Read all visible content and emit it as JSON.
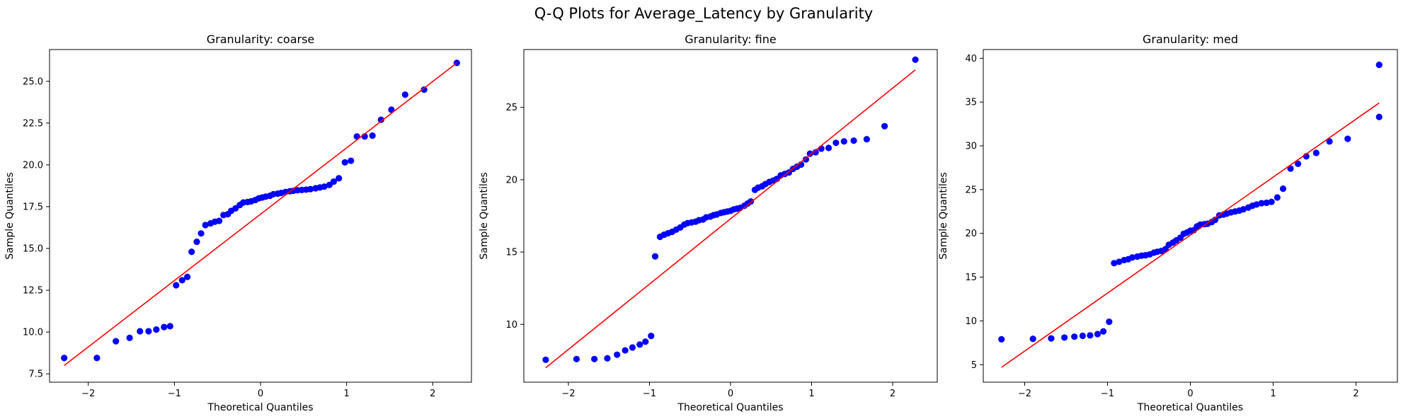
{
  "figure": {
    "title": "Q-Q Plots for Average_Latency by Granularity"
  },
  "chart_data": [
    {
      "type": "scatter",
      "title": "Granularity: coarse",
      "xlabel": "Theoretical Quantiles",
      "ylabel": "Sample Quantiles",
      "xlim": [
        -2.45,
        2.45
      ],
      "ylim": [
        7.0,
        26.9
      ],
      "xticks": [
        -2,
        -1,
        0,
        1,
        2
      ],
      "xtick_labels": [
        "−2",
        "−1",
        "0",
        "1",
        "2"
      ],
      "yticks": [
        7.5,
        10.0,
        12.5,
        15.0,
        17.5,
        20.0,
        22.5,
        25.0
      ],
      "ytick_labels": [
        "7.5",
        "10.0",
        "12.5",
        "15.0",
        "17.5",
        "20.0",
        "22.5",
        "25.0"
      ],
      "point_color": "#0000ff",
      "line_color": "#ff0000",
      "points": [
        [
          -2.28,
          8.45
        ],
        [
          -1.9,
          8.45
        ],
        [
          -1.68,
          9.45
        ],
        [
          -1.52,
          9.65
        ],
        [
          -1.4,
          10.05
        ],
        [
          -1.3,
          10.05
        ],
        [
          -1.21,
          10.15
        ],
        [
          -1.12,
          10.3
        ],
        [
          -1.05,
          10.35
        ],
        [
          -0.98,
          12.8
        ],
        [
          -0.91,
          13.1
        ],
        [
          -0.85,
          13.3
        ],
        [
          -0.8,
          14.8
        ],
        [
          -0.74,
          15.4
        ],
        [
          -0.69,
          15.9
        ],
        [
          -0.64,
          16.4
        ],
        [
          -0.58,
          16.5
        ],
        [
          -0.53,
          16.6
        ],
        [
          -0.48,
          16.65
        ],
        [
          -0.43,
          17.0
        ],
        [
          -0.38,
          17.05
        ],
        [
          -0.34,
          17.25
        ],
        [
          -0.29,
          17.4
        ],
        [
          -0.24,
          17.6
        ],
        [
          -0.2,
          17.75
        ],
        [
          -0.15,
          17.78
        ],
        [
          -0.11,
          17.82
        ],
        [
          -0.06,
          17.9
        ],
        [
          -0.02,
          18.0
        ],
        [
          0.02,
          18.05
        ],
        [
          0.06,
          18.1
        ],
        [
          0.11,
          18.15
        ],
        [
          0.15,
          18.25
        ],
        [
          0.2,
          18.28
        ],
        [
          0.24,
          18.32
        ],
        [
          0.29,
          18.38
        ],
        [
          0.34,
          18.42
        ],
        [
          0.38,
          18.45
        ],
        [
          0.43,
          18.48
        ],
        [
          0.48,
          18.5
        ],
        [
          0.53,
          18.52
        ],
        [
          0.58,
          18.55
        ],
        [
          0.64,
          18.6
        ],
        [
          0.69,
          18.65
        ],
        [
          0.74,
          18.7
        ],
        [
          0.8,
          18.8
        ],
        [
          0.85,
          19.0
        ],
        [
          0.91,
          19.2
        ],
        [
          0.98,
          20.15
        ],
        [
          1.05,
          20.25
        ],
        [
          1.12,
          21.7
        ],
        [
          1.21,
          21.7
        ],
        [
          1.3,
          21.75
        ],
        [
          1.4,
          22.7
        ],
        [
          1.52,
          23.3
        ],
        [
          1.68,
          24.2
        ],
        [
          1.9,
          24.5
        ],
        [
          2.28,
          26.1
        ]
      ],
      "reference_line": [
        [
          -2.28,
          8.0
        ],
        [
          2.28,
          26.1
        ]
      ]
    },
    {
      "type": "scatter",
      "title": "Granularity: fine",
      "xlabel": "Theoretical Quantiles",
      "ylabel": "Sample Quantiles",
      "xlim": [
        -2.55,
        2.55
      ],
      "ylim": [
        6.0,
        29.0
      ],
      "xticks": [
        -2,
        -1,
        0,
        1,
        2
      ],
      "xtick_labels": [
        "−2",
        "−1",
        "0",
        "1",
        "2"
      ],
      "yticks": [
        10,
        15,
        20,
        25
      ],
      "ytick_labels": [
        "10",
        "15",
        "20",
        "25"
      ],
      "point_color": "#0000ff",
      "line_color": "#ff0000",
      "points": [
        [
          -2.28,
          7.55
        ],
        [
          -1.9,
          7.6
        ],
        [
          -1.68,
          7.6
        ],
        [
          -1.52,
          7.65
        ],
        [
          -1.4,
          7.9
        ],
        [
          -1.3,
          8.2
        ],
        [
          -1.21,
          8.4
        ],
        [
          -1.12,
          8.6
        ],
        [
          -1.05,
          8.8
        ],
        [
          -0.98,
          9.2
        ],
        [
          -0.93,
          14.7
        ],
        [
          -0.87,
          16.05
        ],
        [
          -0.82,
          16.2
        ],
        [
          -0.77,
          16.3
        ],
        [
          -0.72,
          16.4
        ],
        [
          -0.67,
          16.55
        ],
        [
          -0.62,
          16.7
        ],
        [
          -0.57,
          16.9
        ],
        [
          -0.53,
          17.0
        ],
        [
          -0.48,
          17.05
        ],
        [
          -0.43,
          17.1
        ],
        [
          -0.39,
          17.2
        ],
        [
          -0.34,
          17.25
        ],
        [
          -0.3,
          17.4
        ],
        [
          -0.25,
          17.45
        ],
        [
          -0.21,
          17.55
        ],
        [
          -0.17,
          17.6
        ],
        [
          -0.12,
          17.7
        ],
        [
          -0.08,
          17.75
        ],
        [
          -0.04,
          17.8
        ],
        [
          0.0,
          17.85
        ],
        [
          0.04,
          17.95
        ],
        [
          0.08,
          18.0
        ],
        [
          0.12,
          18.05
        ],
        [
          0.17,
          18.2
        ],
        [
          0.21,
          18.35
        ],
        [
          0.25,
          18.5
        ],
        [
          0.3,
          19.3
        ],
        [
          0.34,
          19.45
        ],
        [
          0.39,
          19.55
        ],
        [
          0.43,
          19.7
        ],
        [
          0.48,
          19.85
        ],
        [
          0.53,
          19.95
        ],
        [
          0.57,
          20.05
        ],
        [
          0.62,
          20.3
        ],
        [
          0.67,
          20.4
        ],
        [
          0.72,
          20.5
        ],
        [
          0.77,
          20.75
        ],
        [
          0.82,
          20.9
        ],
        [
          0.87,
          21.05
        ],
        [
          0.93,
          21.4
        ],
        [
          0.98,
          21.8
        ],
        [
          1.05,
          21.9
        ],
        [
          1.12,
          22.15
        ],
        [
          1.21,
          22.2
        ],
        [
          1.3,
          22.55
        ],
        [
          1.4,
          22.65
        ],
        [
          1.52,
          22.7
        ],
        [
          1.68,
          22.8
        ],
        [
          1.9,
          23.7
        ],
        [
          2.28,
          28.3
        ]
      ],
      "reference_line": [
        [
          -2.28,
          7.0
        ],
        [
          2.28,
          27.6
        ]
      ]
    },
    {
      "type": "scatter",
      "title": "Granularity: med",
      "xlabel": "Theoretical Quantiles",
      "ylabel": "Sample Quantiles",
      "xlim": [
        -2.5,
        2.5
      ],
      "ylim": [
        3.0,
        41.0
      ],
      "xticks": [
        -2,
        -1,
        0,
        1,
        2
      ],
      "xtick_labels": [
        "−2",
        "−1",
        "0",
        "1",
        "2"
      ],
      "yticks": [
        5,
        10,
        15,
        20,
        25,
        30,
        35,
        40
      ],
      "ytick_labels": [
        "5",
        "10",
        "15",
        "20",
        "25",
        "30",
        "35",
        "40"
      ],
      "point_color": "#0000ff",
      "line_color": "#ff0000",
      "points": [
        [
          -2.28,
          7.9
        ],
        [
          -1.9,
          7.95
        ],
        [
          -1.68,
          8.0
        ],
        [
          -1.52,
          8.1
        ],
        [
          -1.4,
          8.2
        ],
        [
          -1.3,
          8.3
        ],
        [
          -1.21,
          8.35
        ],
        [
          -1.12,
          8.5
        ],
        [
          -1.05,
          8.8
        ],
        [
          -0.98,
          9.9
        ],
        [
          -0.92,
          16.6
        ],
        [
          -0.86,
          16.75
        ],
        [
          -0.8,
          16.95
        ],
        [
          -0.75,
          17.05
        ],
        [
          -0.7,
          17.25
        ],
        [
          -0.64,
          17.35
        ],
        [
          -0.59,
          17.45
        ],
        [
          -0.54,
          17.5
        ],
        [
          -0.49,
          17.6
        ],
        [
          -0.44,
          17.8
        ],
        [
          -0.4,
          17.9
        ],
        [
          -0.35,
          18.0
        ],
        [
          -0.3,
          18.2
        ],
        [
          -0.26,
          18.7
        ],
        [
          -0.21,
          18.95
        ],
        [
          -0.17,
          19.2
        ],
        [
          -0.12,
          19.5
        ],
        [
          -0.08,
          19.95
        ],
        [
          -0.04,
          20.1
        ],
        [
          0.0,
          20.3
        ],
        [
          0.04,
          20.35
        ],
        [
          0.08,
          20.8
        ],
        [
          0.12,
          21.0
        ],
        [
          0.17,
          21.05
        ],
        [
          0.21,
          21.1
        ],
        [
          0.26,
          21.3
        ],
        [
          0.3,
          21.55
        ],
        [
          0.35,
          22.05
        ],
        [
          0.4,
          22.15
        ],
        [
          0.44,
          22.25
        ],
        [
          0.49,
          22.4
        ],
        [
          0.54,
          22.5
        ],
        [
          0.59,
          22.6
        ],
        [
          0.64,
          22.75
        ],
        [
          0.7,
          22.95
        ],
        [
          0.75,
          23.15
        ],
        [
          0.8,
          23.3
        ],
        [
          0.86,
          23.45
        ],
        [
          0.92,
          23.5
        ],
        [
          0.98,
          23.6
        ],
        [
          1.05,
          24.1
        ],
        [
          1.12,
          25.1
        ],
        [
          1.21,
          27.4
        ],
        [
          1.3,
          27.95
        ],
        [
          1.4,
          28.8
        ],
        [
          1.52,
          29.2
        ],
        [
          1.68,
          30.5
        ],
        [
          1.9,
          30.8
        ],
        [
          2.28,
          33.3
        ]
      ],
      "extra_points": [
        [
          2.28,
          39.25
        ]
      ],
      "reference_line": [
        [
          -2.28,
          4.7
        ],
        [
          2.28,
          34.9
        ]
      ]
    }
  ]
}
